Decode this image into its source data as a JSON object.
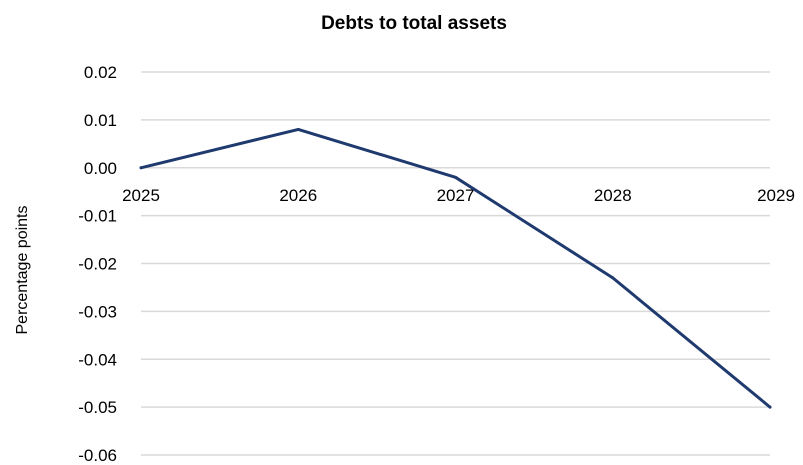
{
  "chart_data": {
    "type": "line",
    "title": "Debts to total assets",
    "ylabel": "Percentage points",
    "xlabel": "",
    "categories": [
      "2025",
      "2026",
      "2027",
      "2028",
      "2029"
    ],
    "series": [
      {
        "values": [
          0.0,
          0.008,
          -0.002,
          -0.023,
          -0.05
        ]
      }
    ],
    "ylim": [
      -0.06,
      0.02
    ],
    "yticks": [
      0.02,
      0.01,
      0.0,
      -0.01,
      -0.02,
      -0.03,
      -0.04,
      -0.05,
      -0.06
    ],
    "ytick_labels": [
      "0.02",
      "0.01",
      "0.00",
      "-0.01",
      "-0.02",
      "-0.03",
      "-0.04",
      "-0.05",
      "-0.06"
    ],
    "grid": true,
    "legend": "none",
    "line_color": "#1f3a6e",
    "grid_color": "#d9d9d9"
  }
}
